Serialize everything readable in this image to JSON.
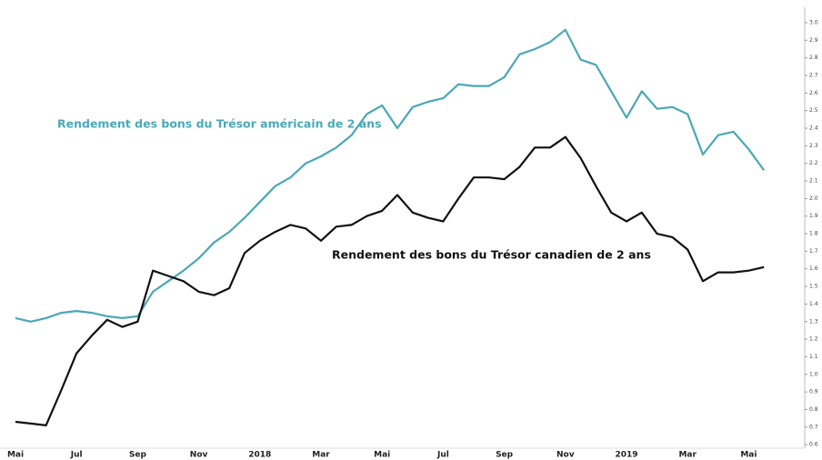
{
  "chart_data": {
    "type": "line",
    "annotations": [
      "Rendement des bons du Trésor américain de 2 ans",
      "Rendement des bons du Trésor canadien de 2 ans"
    ],
    "categories": [
      "Mai",
      null,
      null,
      null,
      "Jul",
      null,
      null,
      null,
      "Sep",
      null,
      null,
      null,
      "Nov",
      null,
      null,
      null,
      "2018",
      null,
      null,
      null,
      "Mar",
      null,
      null,
      null,
      "Mai",
      null,
      null,
      null,
      "Jul",
      null,
      null,
      null,
      "Sep",
      null,
      null,
      null,
      "Nov",
      null,
      null,
      null,
      "2019",
      null,
      null,
      null,
      "Mar",
      null,
      null,
      null,
      "Mai",
      null
    ],
    "series": [
      {
        "name": "Rendement des bons du Trésor américain de 2 ans",
        "color": "#4aa8b5",
        "values": [
          1.32,
          1.3,
          1.32,
          1.35,
          1.36,
          1.35,
          1.33,
          1.32,
          1.33,
          1.47,
          1.53,
          1.59,
          1.66,
          1.75,
          1.81,
          1.89,
          1.98,
          2.07,
          2.12,
          2.2,
          2.24,
          2.29,
          2.36,
          2.48,
          2.53,
          2.4,
          2.52,
          2.55,
          2.57,
          2.65,
          2.64,
          2.64,
          2.69,
          2.82,
          2.85,
          2.89,
          2.96,
          2.79,
          2.76,
          2.61,
          2.46,
          2.61,
          2.51,
          2.52,
          2.48,
          2.25,
          2.36,
          2.38,
          2.28,
          2.16
        ]
      },
      {
        "name": "Rendement des bons du Trésor canadien de 2 ans",
        "color": "#111111",
        "values": [
          0.73,
          0.72,
          0.71,
          0.91,
          1.12,
          1.22,
          1.31,
          1.27,
          1.3,
          1.59,
          1.56,
          1.53,
          1.47,
          1.45,
          1.49,
          1.69,
          1.76,
          1.81,
          1.85,
          1.83,
          1.76,
          1.84,
          1.85,
          1.9,
          1.93,
          2.02,
          1.92,
          1.89,
          1.87,
          2.0,
          2.12,
          2.12,
          2.11,
          2.18,
          2.29,
          2.29,
          2.35,
          2.23,
          2.07,
          1.92,
          1.87,
          1.92,
          1.8,
          1.78,
          1.71,
          1.53,
          1.58,
          1.58,
          1.59,
          1.61
        ]
      }
    ],
    "ylim": [
      0.58,
      3.08
    ],
    "yticks": [
      0.6,
      0.7,
      0.8,
      0.9,
      {
        "value": 1.0,
        "label": "1.0"
      },
      1.1,
      1.2,
      1.3,
      1.4,
      1.5,
      1.6,
      1.7,
      1.8,
      1.9,
      {
        "value": 2.0,
        "label": "2.0"
      },
      2.1,
      2.2,
      2.3,
      2.4,
      2.5,
      2.6,
      2.7,
      2.8,
      2.9,
      {
        "value": 3.0,
        "label": "3.0"
      }
    ]
  }
}
